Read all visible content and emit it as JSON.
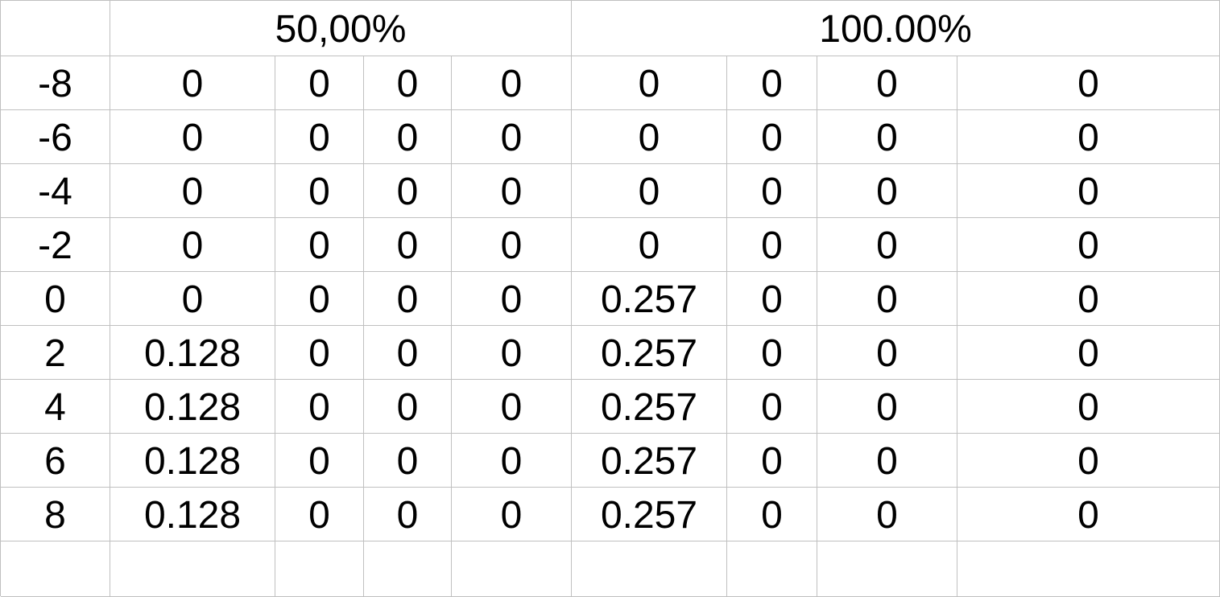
{
  "sheet": {
    "header_groups": [
      "50,00%",
      "100.00%"
    ],
    "rows": [
      [
        "-8",
        "0",
        "0",
        "0",
        "0",
        "0",
        "0",
        "0",
        "0"
      ],
      [
        "-6",
        "0",
        "0",
        "0",
        "0",
        "0",
        "0",
        "0",
        "0"
      ],
      [
        "-4",
        "0",
        "0",
        "0",
        "0",
        "0",
        "0",
        "0",
        "0"
      ],
      [
        "-2",
        "0",
        "0",
        "0",
        "0",
        "0",
        "0",
        "0",
        "0"
      ],
      [
        "0",
        "0",
        "0",
        "0",
        "0",
        "0.257",
        "0",
        "0",
        "0"
      ],
      [
        "2",
        "0.128",
        "0",
        "0",
        "0",
        "0.257",
        "0",
        "0",
        "0"
      ],
      [
        "4",
        "0.128",
        "0",
        "0",
        "0",
        "0.257",
        "0",
        "0",
        "0"
      ],
      [
        "6",
        "0.128",
        "0",
        "0",
        "0",
        "0.257",
        "0",
        "0",
        "0"
      ],
      [
        "8",
        "0.128",
        "0",
        "0",
        "0",
        "0.257",
        "0",
        "0",
        "0"
      ]
    ]
  }
}
